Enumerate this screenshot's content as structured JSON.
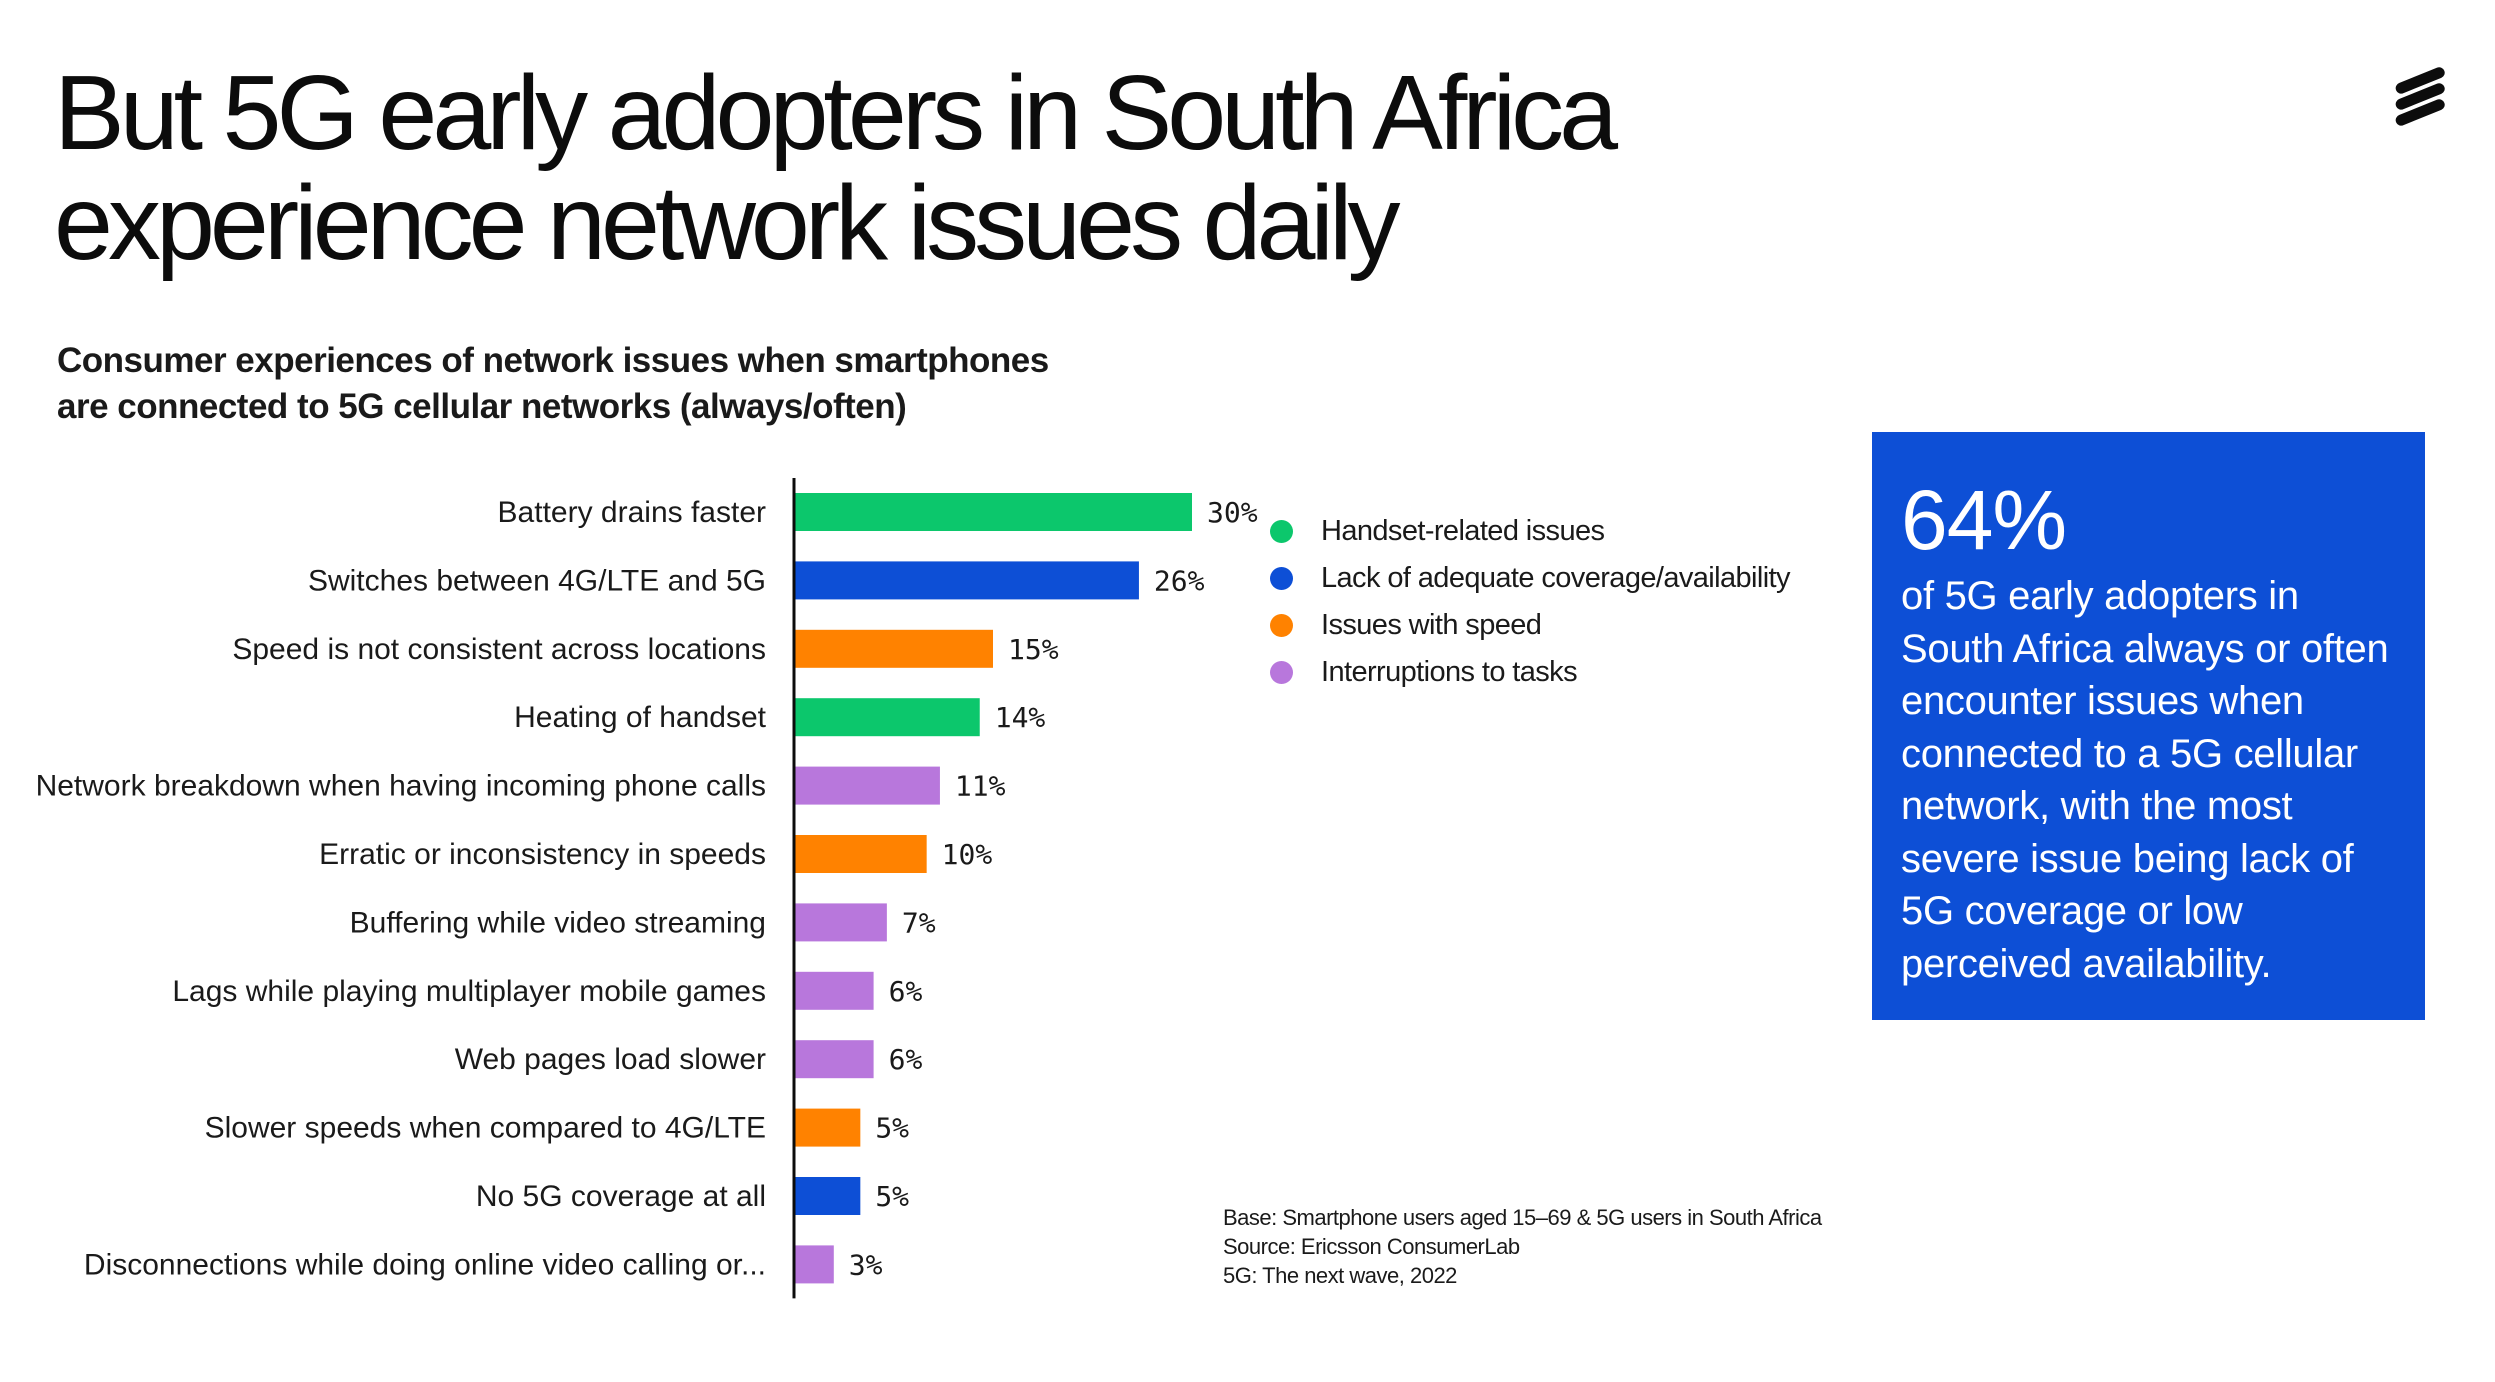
{
  "title_lines": [
    "But 5G early adopters in South Africa",
    "experience network issues daily"
  ],
  "subtitle_lines": [
    "Consumer experiences of network issues when smartphones",
    "are connected to 5G cellular networks (always/often)"
  ],
  "colors": {
    "handset": "#0cc76c",
    "coverage": "#0d4fd6",
    "speed": "#ff8200",
    "interruptions": "#b877dc",
    "callout_bg": "#0d4fd6"
  },
  "legend": [
    {
      "label": "Handset-related issues",
      "color": "#0cc76c"
    },
    {
      "label": "Lack of adequate coverage/availability",
      "color": "#0d4fd6"
    },
    {
      "label": "Issues with speed",
      "color": "#ff8200"
    },
    {
      "label": "Interruptions to tasks",
      "color": "#b877dc"
    }
  ],
  "chart_data": {
    "type": "bar",
    "orientation": "horizontal",
    "categories": [
      "Battery drains faster",
      "Switches between 4G/LTE and 5G",
      "Speed is not consistent across locations",
      "Heating of handset",
      "Network breakdown when having incoming phone calls",
      "Erratic or inconsistency in speeds",
      "Buffering while video streaming",
      "Lags while playing multiplayer mobile games",
      "Web pages load slower",
      "Slower speeds when compared to 4G/LTE",
      "No 5G coverage at all",
      "Disconnections while doing online video calling or..."
    ],
    "values": [
      30,
      26,
      15,
      14,
      11,
      10,
      7,
      6,
      6,
      5,
      5,
      3
    ],
    "value_labels": [
      "30%",
      "26%",
      "15%",
      "14%",
      "11%",
      "10%",
      "7%",
      "6%",
      "6%",
      "5%",
      "5%",
      "3%"
    ],
    "groups": [
      "handset",
      "coverage",
      "speed",
      "handset",
      "interruptions",
      "speed",
      "interruptions",
      "interruptions",
      "interruptions",
      "speed",
      "coverage",
      "interruptions"
    ],
    "unit": "%",
    "xlim": [
      0,
      30
    ],
    "grid": false,
    "legend_position": "right"
  },
  "callout": {
    "value": "64%",
    "text": "of 5G early adopters in South Africa always or often encounter issues when connected to a 5G cellular network, with the most severe issue being lack of 5G coverage or low perceived availability."
  },
  "footnote_lines": [
    "Base: Smartphone users aged 15–69 & 5G users in South Africa",
    "Source: Ericsson ConsumerLab",
    "5G: The next wave, 2022"
  ]
}
